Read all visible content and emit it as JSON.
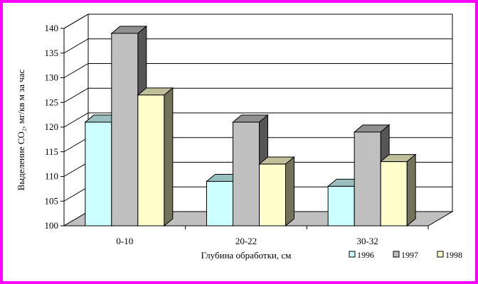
{
  "chart_data": {
    "type": "bar",
    "title": "",
    "xlabel": "Глубина обработки, см",
    "ylabel": "Выделение  CO₂, мг/кв м за час",
    "ylim": [
      100,
      140
    ],
    "yticks": [
      100,
      105,
      110,
      115,
      120,
      125,
      130,
      135,
      140
    ],
    "grid": true,
    "legend_position": "bottom-right",
    "categories": [
      "0-10",
      "20-22",
      "30-32"
    ],
    "series": [
      {
        "name": "1996",
        "values": [
          121,
          109,
          108
        ],
        "color": "#ccffff"
      },
      {
        "name": "1997",
        "values": [
          139,
          121,
          119
        ],
        "color": "#c0c0c0"
      },
      {
        "name": "1998",
        "values": [
          126.5,
          112.5,
          113
        ],
        "color": "#ffffcc"
      }
    ]
  }
}
